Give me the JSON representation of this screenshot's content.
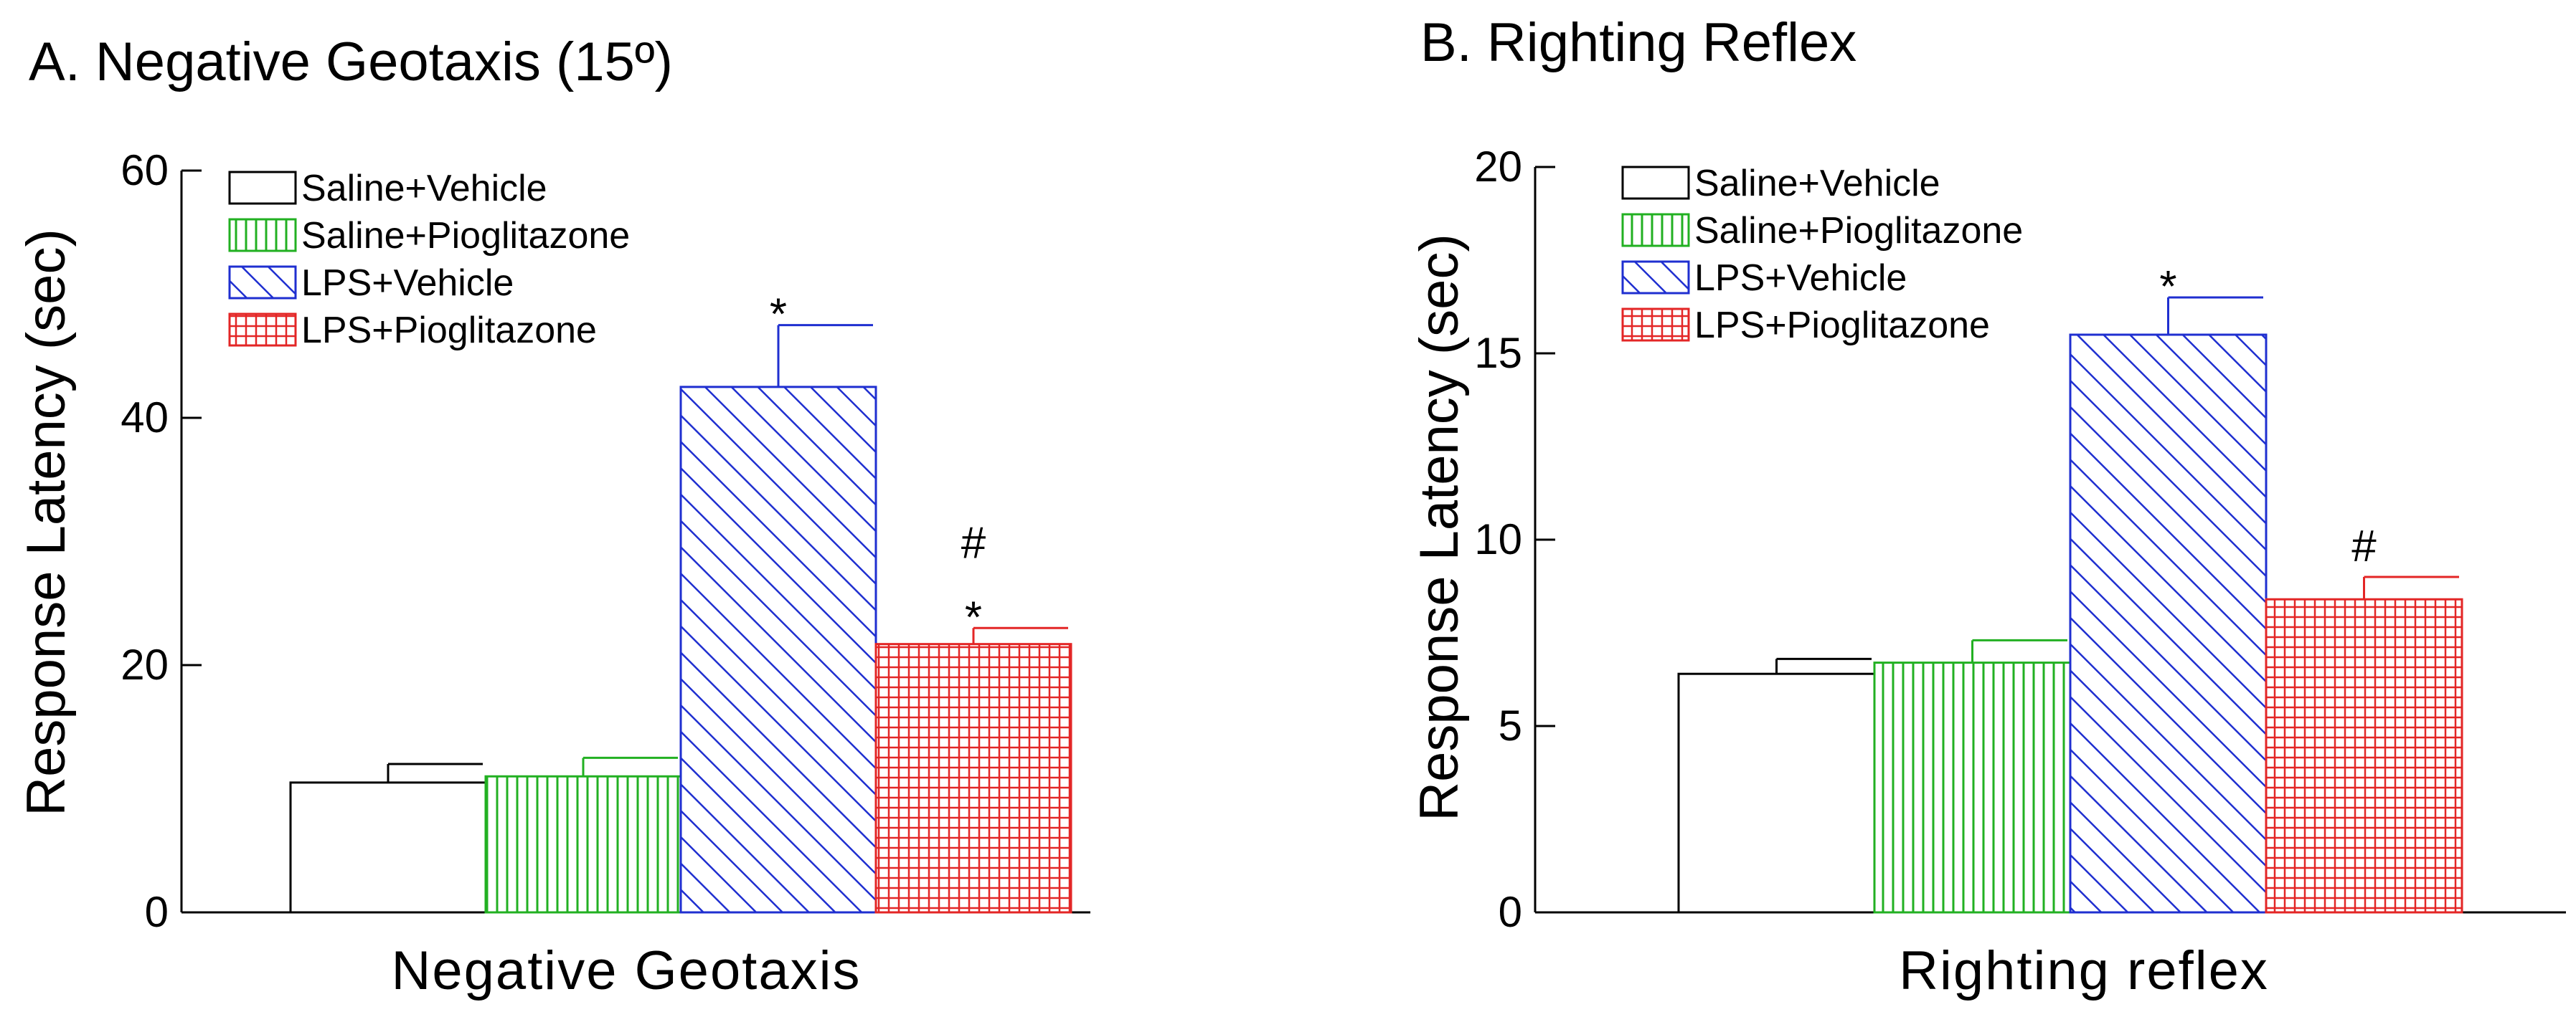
{
  "colors": {
    "saline_vehicle": "#000000",
    "saline_pioglitazone": "#22b022",
    "lps_vehicle": "#1f2fd0",
    "lps_pioglitazone": "#e32626"
  },
  "chart_data": [
    {
      "type": "bar",
      "title": "A. Negative Geotaxis (15º)",
      "xlabel": "Negative Geotaxis",
      "ylabel": "Response Latency (sec)",
      "ylim": [
        0,
        60
      ],
      "yticks": [
        "0",
        "20",
        "40",
        "60"
      ],
      "legend_position": "top-left",
      "series": [
        {
          "name": "Saline+Vehicle",
          "value": 10.5,
          "error": 1.5,
          "annotations": []
        },
        {
          "name": "Saline+Pioglitazone",
          "value": 11.0,
          "error": 1.5,
          "annotations": []
        },
        {
          "name": "LPS+Vehicle",
          "value": 42.5,
          "error": 5.0,
          "annotations": [
            "*"
          ]
        },
        {
          "name": "LPS+Pioglitazone",
          "value": 21.7,
          "error": 1.3,
          "annotations": [
            "*",
            "#"
          ]
        }
      ]
    },
    {
      "type": "bar",
      "title": "B. Righting Reflex",
      "xlabel": "Righting reflex",
      "ylabel": "Response Latency (sec)",
      "ylim": [
        0,
        20
      ],
      "yticks": [
        "0",
        "5",
        "10",
        "15",
        "20"
      ],
      "legend_position": "top-left",
      "series": [
        {
          "name": "Saline+Vehicle",
          "value": 6.4,
          "error": 0.4,
          "annotations": []
        },
        {
          "name": "Saline+Pioglitazone",
          "value": 6.7,
          "error": 0.6,
          "annotations": []
        },
        {
          "name": "LPS+Vehicle",
          "value": 15.5,
          "error": 1.0,
          "annotations": [
            "*"
          ]
        },
        {
          "name": "LPS+Pioglitazone",
          "value": 8.4,
          "error": 0.6,
          "annotations": [
            "#"
          ]
        }
      ]
    }
  ]
}
